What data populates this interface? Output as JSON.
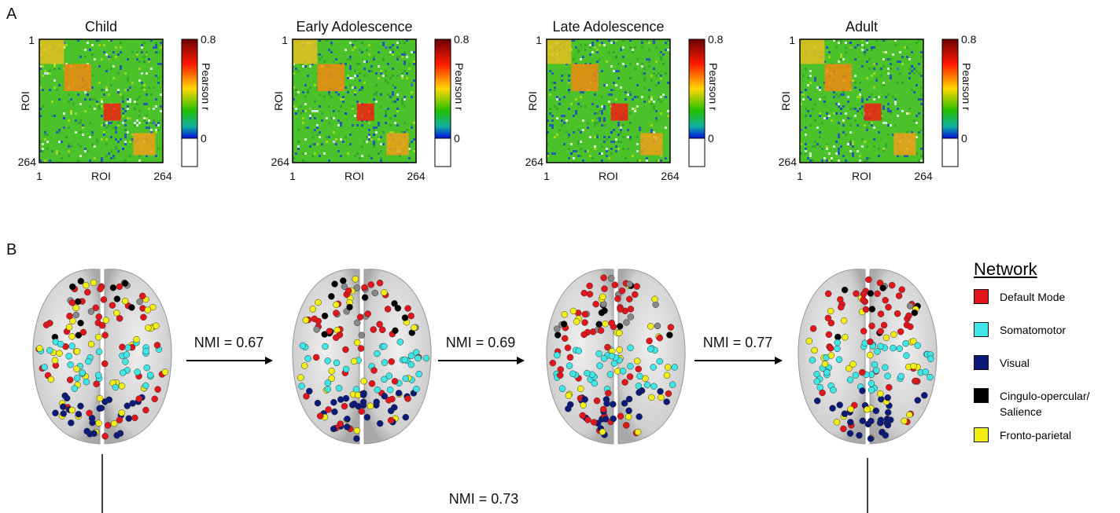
{
  "panel_a": {
    "label": "A",
    "matrices": [
      {
        "title": "Child"
      },
      {
        "title": "Early Adolescence"
      },
      {
        "title": "Late Adolescence"
      },
      {
        "title": "Adult"
      }
    ],
    "axis_label": "ROI",
    "axis_start": "1",
    "axis_end": "264",
    "colorbar": {
      "max_label": "0.8",
      "min_label": "0",
      "title": "Pearson r"
    }
  },
  "panel_b": {
    "label": "B",
    "nmi_labels": [
      "NMI = 0.67",
      "NMI = 0.69",
      "NMI = 0.77",
      "NMI = 0.73"
    ],
    "legend": {
      "title": "Network",
      "items": [
        {
          "label": "Default Mode",
          "color": "#e3151b"
        },
        {
          "label": "Somatomotor",
          "color": "#3ee6e6"
        },
        {
          "label": "Visual",
          "color": "#0b1a78"
        },
        {
          "label": "Cingulo-opercular/\nSalience",
          "color": "#000000"
        },
        {
          "label": "Fronto-parietal",
          "color": "#f2ee12"
        }
      ]
    }
  }
}
